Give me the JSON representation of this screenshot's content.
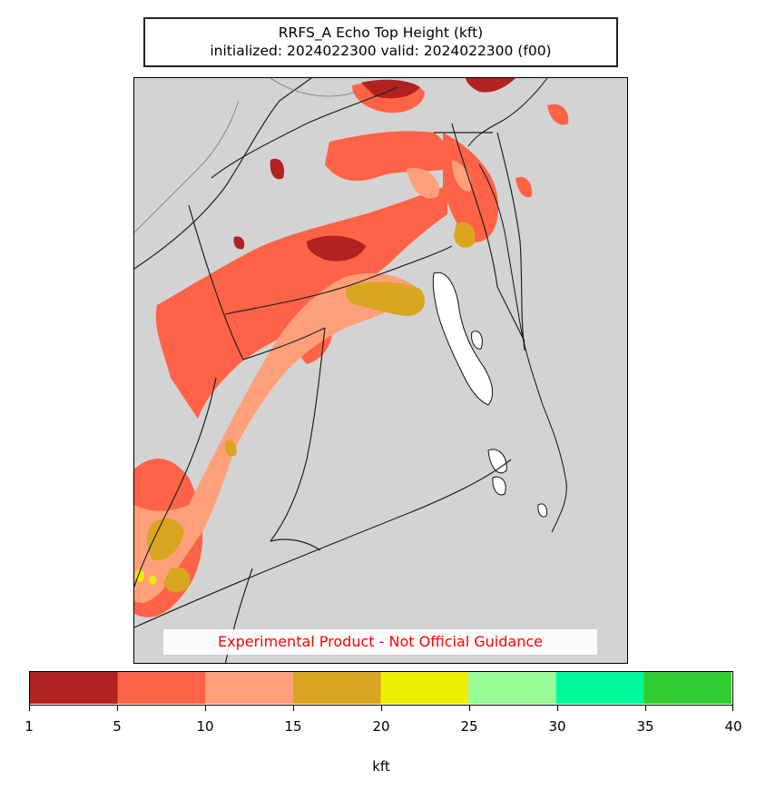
{
  "title": {
    "line1": "RRFS_A Echo Top Height (kft)",
    "line2": "initialized: 2024022300 valid: 2024022300 (f00)"
  },
  "disclaimer": "Experimental Product - Not Official Guidance",
  "colorbar": {
    "label": "kft",
    "ticks": [
      "1",
      "5",
      "10",
      "15",
      "20",
      "25",
      "30",
      "35",
      "40"
    ],
    "bins": [
      {
        "range": "1-5",
        "color": "#b22222"
      },
      {
        "range": "5-10",
        "color": "#ff6347"
      },
      {
        "range": "10-15",
        "color": "#ffa07a"
      },
      {
        "range": "15-20",
        "color": "#daa520"
      },
      {
        "range": "20-25",
        "color": "#eeee00"
      },
      {
        "range": "25-30",
        "color": "#98fb98"
      },
      {
        "range": "30-35",
        "color": "#00fa9a"
      },
      {
        "range": "35-40",
        "color": "#32cd32"
      }
    ]
  },
  "map": {
    "background_color": "#d3d3d3",
    "water_color": "#ffffff",
    "border_color": "#222222"
  }
}
